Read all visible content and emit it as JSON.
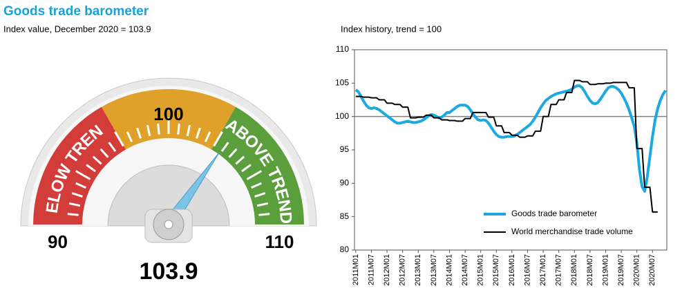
{
  "title": "Goods trade barometer",
  "chart_data": [
    {
      "type": "gauge",
      "title": "Index value, December 2020 = 103.9",
      "range": [
        90,
        110
      ],
      "ticks": [
        90,
        100,
        110
      ],
      "value": 103.9,
      "needle_color": "#7cc3e8",
      "zones": [
        {
          "label": "BELOW TREND",
          "color": "#d23c39",
          "to": 96.7
        },
        {
          "color": "#e0a12a",
          "to": 103.3
        },
        {
          "label": "ABOVE TREND",
          "color": "#5b9e3c",
          "to": 110
        }
      ]
    },
    {
      "type": "line",
      "title": "Index history, trend = 100",
      "categories": [
        "2011M01",
        null,
        null,
        null,
        null,
        null,
        "2011M07",
        null,
        null,
        null,
        null,
        null,
        "2012M01",
        null,
        null,
        null,
        null,
        null,
        "2012M07",
        null,
        null,
        null,
        null,
        null,
        "2013M01",
        null,
        null,
        null,
        null,
        null,
        "2013M07",
        null,
        null,
        null,
        null,
        null,
        "2014M01",
        null,
        null,
        null,
        null,
        null,
        "2014M07",
        null,
        null,
        null,
        null,
        null,
        "2015M01",
        null,
        null,
        null,
        null,
        null,
        "2015M07",
        null,
        null,
        null,
        null,
        null,
        "2016M01",
        null,
        null,
        null,
        null,
        null,
        "2016M07",
        null,
        null,
        null,
        null,
        null,
        "2017M01",
        null,
        null,
        null,
        null,
        null,
        "2017M07",
        null,
        null,
        null,
        null,
        null,
        "2018M01",
        null,
        null,
        null,
        null,
        null,
        "2018M07",
        null,
        null,
        null,
        null,
        null,
        "2019M01",
        null,
        null,
        null,
        null,
        null,
        "2019M07",
        null,
        null,
        null,
        null,
        null,
        "2020M01",
        null,
        null,
        null,
        null,
        null,
        "2020M07",
        null,
        null,
        null,
        null,
        null
      ],
      "series": [
        {
          "name": "Goods trade barometer",
          "color": "#1ca9e1",
          "width": 4,
          "values": [
            104.0,
            103.7,
            103.0,
            102.3,
            101.7,
            101.3,
            101.2,
            101.3,
            101.2,
            101.0,
            100.7,
            100.4,
            100.1,
            99.8,
            99.5,
            99.2,
            99.0,
            99.0,
            99.1,
            99.2,
            99.3,
            99.2,
            99.1,
            99.1,
            99.2,
            99.3,
            99.5,
            99.8,
            100.1,
            100.3,
            100.2,
            100.0,
            99.8,
            99.9,
            100.2,
            100.6,
            100.6,
            100.9,
            101.2,
            101.5,
            101.7,
            101.7,
            101.7,
            101.5,
            101.0,
            100.4,
            99.9,
            99.5,
            99.4,
            99.5,
            99.4,
            99.0,
            98.4,
            97.8,
            97.3,
            97.0,
            96.9,
            96.9,
            97.0,
            97.0,
            97.0,
            97.1,
            97.3,
            97.6,
            97.9,
            98.2,
            98.5,
            98.8,
            99.3,
            99.9,
            100.6,
            101.3,
            101.9,
            102.4,
            102.7,
            103.0,
            103.2,
            103.4,
            103.5,
            103.6,
            103.7,
            103.8,
            103.9,
            104.1,
            104.4,
            104.6,
            104.6,
            104.3,
            103.7,
            103.0,
            102.4,
            102.0,
            101.9,
            102.1,
            102.6,
            103.2,
            103.8,
            104.3,
            104.5,
            104.5,
            104.3,
            104.0,
            103.5,
            102.8,
            102.0,
            101.0,
            99.8,
            98.5,
            96.0,
            92.0,
            89.5,
            88.8,
            91.0,
            94.0,
            97.0,
            99.5,
            101.2,
            102.4,
            103.3,
            103.9
          ]
        },
        {
          "name": "World merchandise trade volume",
          "color": "#000000",
          "width": 2,
          "values": [
            103.0,
            103.0,
            103.0,
            102.9,
            102.9,
            102.9,
            102.8,
            102.8,
            102.8,
            102.5,
            102.5,
            102.5,
            102.0,
            102.0,
            102.0,
            101.8,
            101.8,
            101.8,
            101.4,
            101.4,
            101.4,
            99.8,
            99.8,
            99.8,
            99.9,
            99.9,
            99.9,
            100.2,
            100.2,
            100.2,
            99.8,
            99.8,
            99.8,
            99.5,
            99.5,
            99.5,
            99.4,
            99.4,
            99.4,
            99.3,
            99.3,
            99.3,
            99.7,
            99.7,
            99.7,
            100.6,
            100.6,
            100.6,
            100.6,
            100.6,
            100.6,
            99.9,
            99.9,
            99.9,
            98.6,
            98.6,
            98.6,
            97.6,
            97.6,
            97.6,
            97.2,
            97.2,
            97.2,
            96.9,
            96.9,
            96.9,
            97.1,
            97.1,
            97.1,
            97.8,
            97.8,
            97.8,
            100.0,
            100.0,
            100.0,
            101.8,
            101.8,
            101.8,
            102.5,
            102.5,
            102.5,
            103.6,
            103.6,
            103.6,
            105.4,
            105.4,
            105.4,
            105.2,
            105.2,
            105.2,
            104.8,
            104.8,
            104.8,
            104.9,
            104.9,
            104.9,
            105.0,
            105.0,
            105.0,
            105.1,
            105.1,
            105.1,
            105.1,
            105.1,
            105.1,
            104.3,
            104.3,
            104.3,
            95.2,
            95.2,
            95.2,
            89.4,
            89.4,
            89.4,
            85.7,
            85.7,
            85.7,
            null,
            null,
            null
          ]
        }
      ],
      "ylim": [
        80,
        110
      ],
      "yticks": [
        80,
        85,
        90,
        95,
        100,
        105,
        110
      ],
      "reference_line": 100,
      "reference_color": "#808080",
      "legend": "lower right"
    }
  ]
}
